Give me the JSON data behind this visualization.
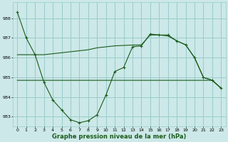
{
  "title": "Graphe pression niveau de la mer (hPa)",
  "background_color": "#cce8e8",
  "grid_color": "#99cccc",
  "line_color": "#1a5c1a",
  "xlim": [
    -0.5,
    23.5
  ],
  "ylim": [
    982.5,
    988.8
  ],
  "yticks": [
    983,
    984,
    985,
    986,
    987,
    988
  ],
  "xticks": [
    0,
    1,
    2,
    3,
    4,
    5,
    6,
    7,
    8,
    9,
    10,
    11,
    12,
    13,
    14,
    15,
    16,
    17,
    18,
    19,
    20,
    21,
    22,
    23
  ],
  "series1": [
    988.3,
    987.0,
    986.15,
    984.75,
    983.85,
    983.35,
    982.85,
    982.7,
    982.8,
    983.1,
    984.1,
    985.3,
    985.5,
    986.55,
    986.6,
    987.2,
    987.15,
    987.15,
    986.85,
    986.65,
    986.0,
    985.0,
    984.85,
    984.45
  ],
  "series2": [
    984.85,
    984.85,
    984.85,
    984.85,
    984.85,
    984.85,
    984.85,
    984.85,
    984.85,
    984.85,
    984.85,
    984.85,
    984.85,
    984.85,
    984.85,
    984.85,
    984.85,
    984.85,
    984.85,
    984.85,
    984.85,
    984.85,
    984.85,
    984.45
  ],
  "series3": [
    986.15,
    986.15,
    986.15,
    986.15,
    986.2,
    986.25,
    986.3,
    986.35,
    986.4,
    986.5,
    986.55,
    986.6,
    986.62,
    986.64,
    986.65,
    987.15,
    987.15,
    987.1,
    986.85,
    986.65,
    986.0,
    985.0,
    984.85,
    984.45
  ]
}
